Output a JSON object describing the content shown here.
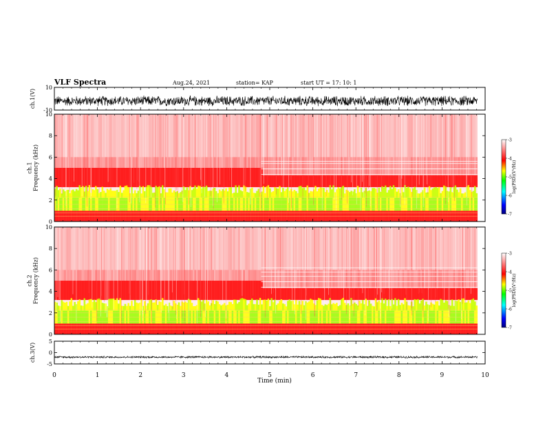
{
  "header": {
    "title": "VLF Spectra",
    "date": "Aug.24, 2021",
    "station": "station= KAP",
    "start": "start  UT  =   17: 10: 1"
  },
  "chart_data": [
    {
      "type": "line",
      "panel": "ch1-waveform",
      "ylabel": "ch.1(V)",
      "ylim": [
        -10,
        10
      ],
      "yticks": [
        "10",
        "-10"
      ],
      "xlim": [
        0,
        10
      ],
      "series": [
        {
          "description_color": "#000000",
          "approx_range": [
            -7,
            3
          ],
          "duration_min": 9.82
        }
      ]
    },
    {
      "type": "heatmap",
      "panel": "ch1-spectrogram",
      "ylabel": "ch.1\nFrequency  (kHz)",
      "ylim": [
        0,
        10
      ],
      "yticks": [
        "0",
        "2",
        "4",
        "6",
        "8",
        "10"
      ],
      "xlim": [
        0,
        10
      ],
      "duration_min": 9.82,
      "colorbar": {
        "label": "log(PSD)(V²/Hz)",
        "range": [
          -7,
          -3
        ],
        "ticks": [
          "-3",
          "-4",
          "-5",
          "-6",
          "-7"
        ]
      },
      "horizontal_lines_khz_after_4_8min": [
        4.4,
        4.9,
        5.4,
        5.6
      ]
    },
    {
      "type": "heatmap",
      "panel": "ch2-spectrogram",
      "ylabel": "ch.2\nFrequency  (kHz)",
      "ylim": [
        0,
        10
      ],
      "yticks": [
        "0",
        "2",
        "4",
        "6",
        "8",
        "10"
      ],
      "xlim": [
        0,
        10
      ],
      "duration_min": 9.82,
      "colorbar": {
        "label": "log(PSD)(V²/Hz)",
        "range": [
          -7,
          -3
        ],
        "ticks": [
          "-3",
          "-4",
          "-5",
          "-6",
          "-7"
        ]
      },
      "horizontal_lines_khz_after_4_8min": [
        4.4,
        4.9,
        5.4,
        5.8,
        6.2
      ]
    },
    {
      "type": "line",
      "panel": "ch3-waveform",
      "ylabel": "ch.3(V)",
      "ylim": [
        -5,
        5
      ],
      "yticks": [
        "5",
        "0",
        "-5"
      ],
      "xlim": [
        0,
        10
      ],
      "xticks": [
        "0",
        "1",
        "2",
        "3",
        "4",
        "5",
        "6",
        "7",
        "8",
        "9",
        "10"
      ],
      "xlabel": "Time  (min)",
      "series": [
        {
          "description_color": "#000000",
          "approx_range": [
            -2.5,
            -1.5
          ],
          "duration_min": 9.82
        }
      ]
    }
  ],
  "colors": {
    "colormap": [
      "#00007f",
      "#0000ff",
      "#00ffff",
      "#00ff00",
      "#ffff00",
      "#ff0000",
      "#ffffff"
    ]
  }
}
